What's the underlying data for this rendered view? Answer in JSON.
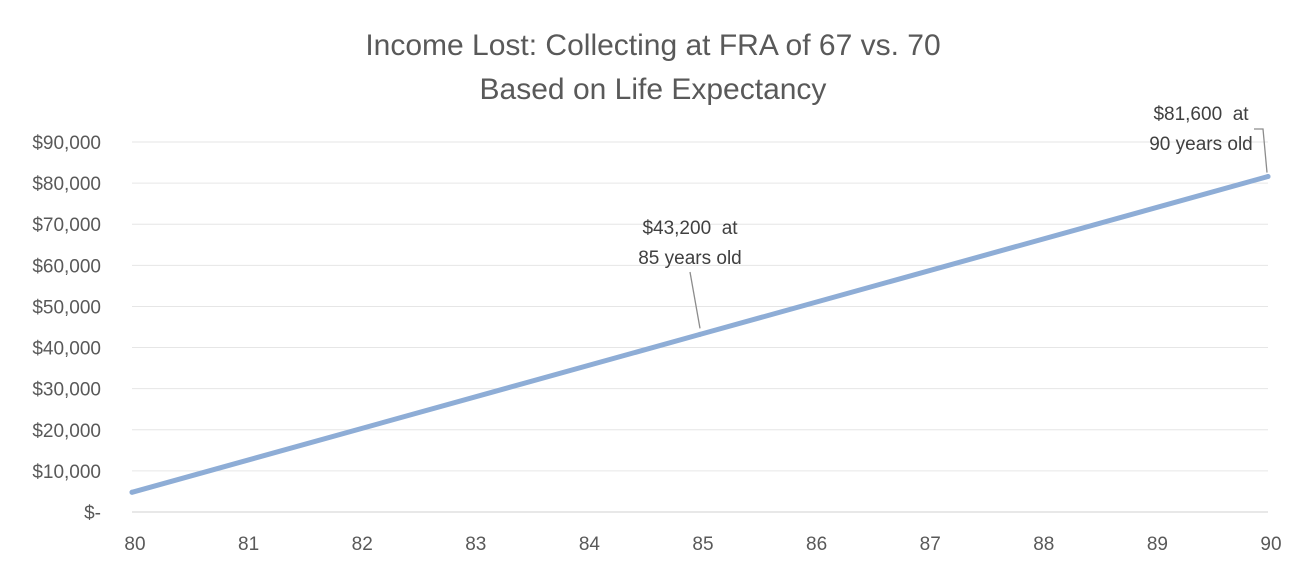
{
  "chart_data": {
    "type": "line",
    "title_lines": [
      "Income Lost: Collecting at FRA of 67 vs. 70",
      "Based on Life Expectancy"
    ],
    "xlabel": "",
    "ylabel": "",
    "x_ticks": [
      "80",
      "81",
      "82",
      "83",
      "84",
      "85",
      "86",
      "87",
      "88",
      "89",
      "90"
    ],
    "y_ticks": [
      "$-",
      "$10,000",
      "$20,000",
      "$30,000",
      "$40,000",
      "$50,000",
      "$60,000",
      "$70,000",
      "$80,000",
      "$90,000"
    ],
    "xlim": [
      80,
      90
    ],
    "ylim": [
      0,
      90000
    ],
    "grid": true,
    "legend": "none",
    "series": [
      {
        "color": "#8eadd6",
        "x": [
          80,
          85,
          90
        ],
        "y": [
          4800,
          43200,
          81600
        ]
      }
    ],
    "annotations": [
      {
        "x": 85,
        "y": 43200,
        "lines": [
          "$43,200  at",
          "85 years old"
        ]
      },
      {
        "x": 90,
        "y": 81600,
        "lines": [
          "$81,600  at",
          "90 years old"
        ]
      }
    ]
  }
}
